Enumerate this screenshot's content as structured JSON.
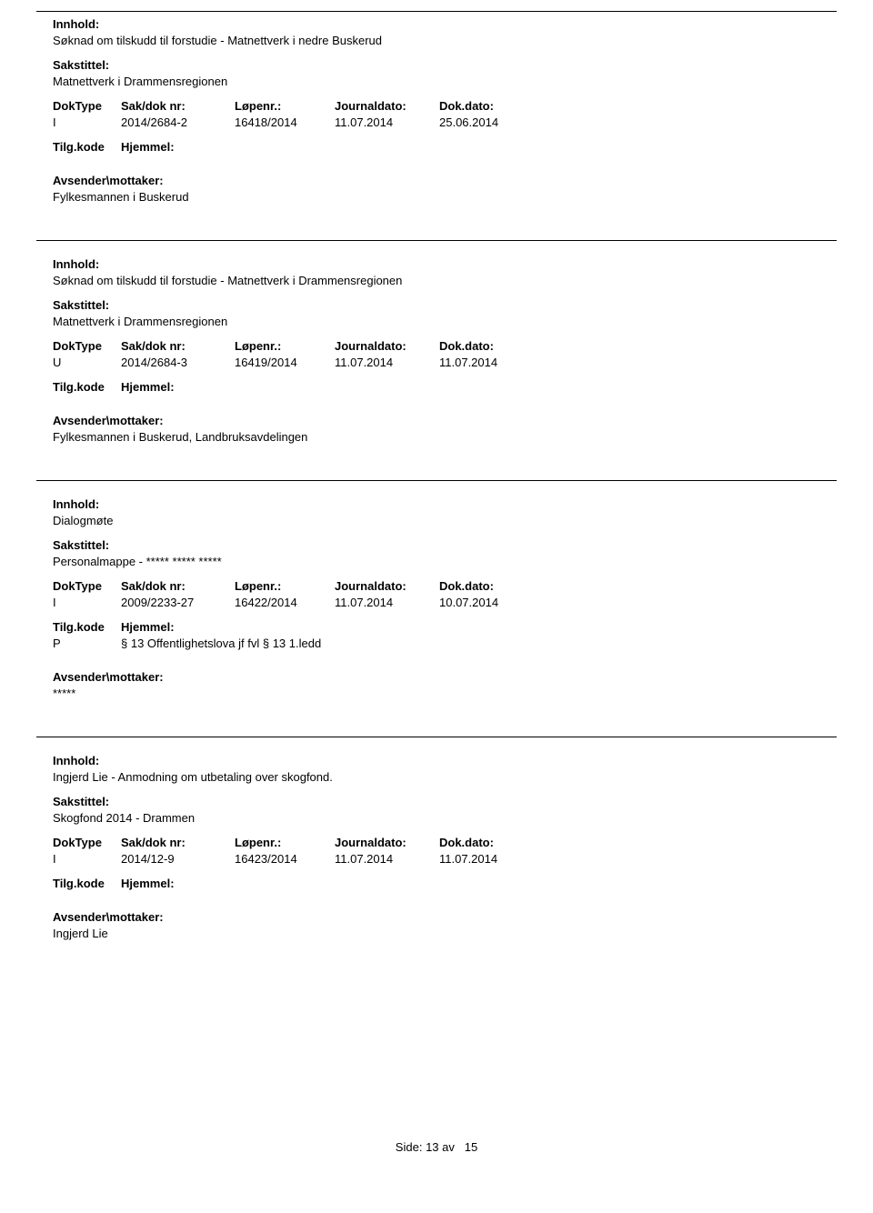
{
  "labels": {
    "innhold": "Innhold:",
    "sakstittel": "Sakstittel:",
    "doktype": "DokType",
    "saknr": "Sak/dok nr:",
    "lopenr": "Løpenr.:",
    "journaldato": "Journaldato:",
    "dokdato": "Dok.dato:",
    "tilgkode": "Tilg.kode",
    "hjemmel": "Hjemmel:",
    "avsender": "Avsender\\mottaker:"
  },
  "records": [
    {
      "innhold": "Søknad om tilskudd til forstudie - Matnettverk i nedre Buskerud",
      "sakstittel": "Matnettverk i Drammensregionen",
      "doktype": "I",
      "saknr": "2014/2684-2",
      "lopenr": "16418/2014",
      "journaldato": "11.07.2014",
      "dokdato": "25.06.2014",
      "tilgkode": "",
      "hjemmel": "",
      "avsender": "Fylkesmannen i Buskerud"
    },
    {
      "innhold": "Søknad om tilskudd til forstudie - Matnettverk i Drammensregionen",
      "sakstittel": "Matnettverk i Drammensregionen",
      "doktype": "U",
      "saknr": "2014/2684-3",
      "lopenr": "16419/2014",
      "journaldato": "11.07.2014",
      "dokdato": "11.07.2014",
      "tilgkode": "",
      "hjemmel": "",
      "avsender": "Fylkesmannen i Buskerud, Landbruksavdelingen"
    },
    {
      "innhold": "Dialogmøte",
      "sakstittel": "Personalmappe - ***** ***** *****",
      "doktype": "I",
      "saknr": "2009/2233-27",
      "lopenr": "16422/2014",
      "journaldato": "11.07.2014",
      "dokdato": "10.07.2014",
      "tilgkode": "P",
      "hjemmel": "§ 13 Offentlighetslova jf fvl § 13 1.ledd",
      "avsender": "*****"
    },
    {
      "innhold": "Ingjerd Lie - Anmodning om utbetaling over skogfond.",
      "sakstittel": "Skogfond 2014 - Drammen",
      "doktype": "I",
      "saknr": "2014/12-9",
      "lopenr": "16423/2014",
      "journaldato": "11.07.2014",
      "dokdato": "11.07.2014",
      "tilgkode": "",
      "hjemmel": "",
      "avsender": "Ingjerd Lie"
    }
  ],
  "footer": {
    "side_label": "Side:",
    "page": "13",
    "av": "av",
    "total": "15"
  }
}
